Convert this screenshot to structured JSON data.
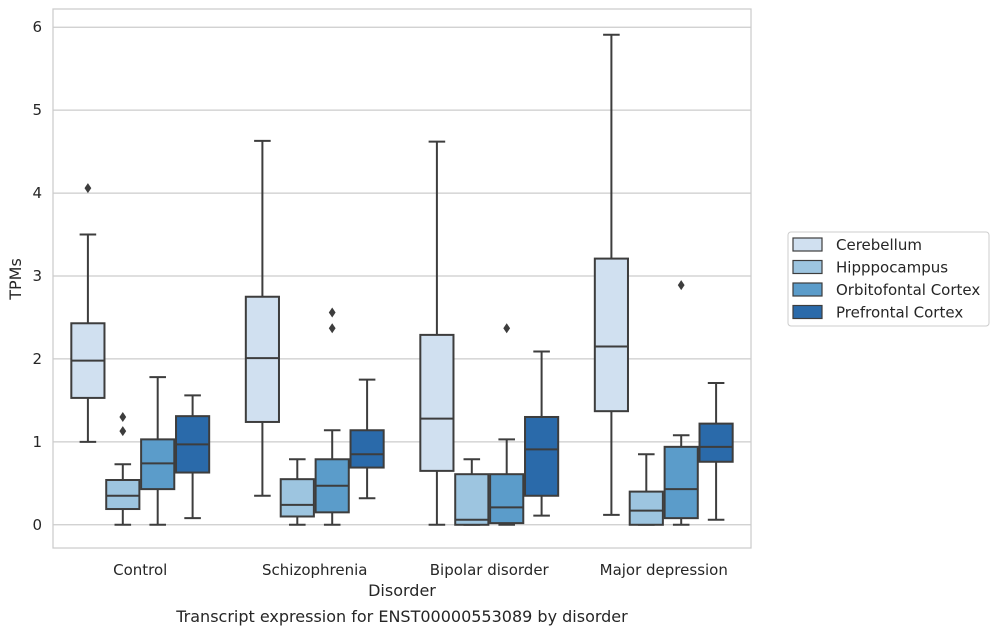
{
  "chart_data": {
    "type": "box",
    "title": "Transcript expression for ENST00000553089 by disorder",
    "xlabel": "Disorder",
    "ylabel": "TPMs",
    "ylim": [
      -0.28,
      6.22
    ],
    "yticks": [
      0,
      1,
      2,
      3,
      4,
      5,
      6
    ],
    "categories": [
      "Control",
      "Schizophrenia",
      "Bipolar disorder",
      "Major depression"
    ],
    "legend": {
      "position": "right"
    },
    "grid": true,
    "series": [
      {
        "name": "Cerebellum",
        "color": "#d0e0f0",
        "boxes": [
          {
            "whislo": 1.0,
            "q1": 1.53,
            "med": 1.98,
            "q3": 2.43,
            "whishi": 3.5,
            "fliers": [
              4.06
            ]
          },
          {
            "whislo": 0.35,
            "q1": 1.24,
            "med": 2.01,
            "q3": 2.75,
            "whishi": 4.63,
            "fliers": []
          },
          {
            "whislo": 0.0,
            "q1": 0.65,
            "med": 1.28,
            "q3": 2.29,
            "whishi": 4.62,
            "fliers": []
          },
          {
            "whislo": 0.12,
            "q1": 1.37,
            "med": 2.15,
            "q3": 3.21,
            "whishi": 5.91,
            "fliers": []
          }
        ]
      },
      {
        "name": "Hipppocampus",
        "color": "#9dc5e0",
        "boxes": [
          {
            "whislo": 0.0,
            "q1": 0.19,
            "med": 0.35,
            "q3": 0.54,
            "whishi": 0.73,
            "fliers": [
              1.13,
              1.3
            ]
          },
          {
            "whislo": 0.0,
            "q1": 0.1,
            "med": 0.24,
            "q3": 0.55,
            "whishi": 0.79,
            "fliers": []
          },
          {
            "whislo": 0.0,
            "q1": 0.0,
            "med": 0.06,
            "q3": 0.61,
            "whishi": 0.79,
            "fliers": []
          },
          {
            "whislo": 0.0,
            "q1": 0.0,
            "med": 0.17,
            "q3": 0.4,
            "whishi": 0.85,
            "fliers": []
          }
        ]
      },
      {
        "name": "Orbitofontal Cortex",
        "color": "#5b9cca",
        "boxes": [
          {
            "whislo": 0.0,
            "q1": 0.43,
            "med": 0.74,
            "q3": 1.03,
            "whishi": 1.78,
            "fliers": []
          },
          {
            "whislo": 0.0,
            "q1": 0.15,
            "med": 0.47,
            "q3": 0.79,
            "whishi": 1.14,
            "fliers": [
              2.37,
              2.56
            ]
          },
          {
            "whislo": 0.0,
            "q1": 0.02,
            "med": 0.21,
            "q3": 0.61,
            "whishi": 1.03,
            "fliers": [
              2.37
            ]
          },
          {
            "whislo": 0.0,
            "q1": 0.08,
            "med": 0.43,
            "q3": 0.94,
            "whishi": 1.08,
            "fliers": [
              2.89
            ]
          }
        ]
      },
      {
        "name": "Prefrontal Cortex",
        "color": "#2a6aaa",
        "boxes": [
          {
            "whislo": 0.08,
            "q1": 0.63,
            "med": 0.97,
            "q3": 1.31,
            "whishi": 1.56,
            "fliers": []
          },
          {
            "whislo": 0.32,
            "q1": 0.69,
            "med": 0.85,
            "q3": 1.14,
            "whishi": 1.75,
            "fliers": []
          },
          {
            "whislo": 0.11,
            "q1": 0.35,
            "med": 0.91,
            "q3": 1.3,
            "whishi": 2.09,
            "fliers": []
          },
          {
            "whislo": 0.06,
            "q1": 0.76,
            "med": 0.94,
            "q3": 1.22,
            "whishi": 1.71,
            "fliers": []
          }
        ]
      }
    ]
  }
}
